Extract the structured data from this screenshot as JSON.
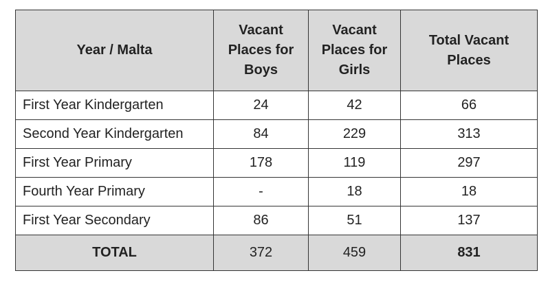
{
  "table": {
    "headers": {
      "year": "Year / Malta",
      "boys": [
        "Vacant",
        "Places for",
        "Boys"
      ],
      "girls": [
        "Vacant",
        "Places for",
        "Girls"
      ],
      "total": [
        "Total Vacant",
        "Places"
      ]
    },
    "rows": [
      {
        "label": "First Year Kindergarten",
        "boys": "24",
        "girls": "42",
        "total": "66"
      },
      {
        "label": "Second Year Kindergarten",
        "boys": "84",
        "girls": "229",
        "total": "313"
      },
      {
        "label": "First Year Primary",
        "boys": "178",
        "girls": "119",
        "total": "297"
      },
      {
        "label": "Fourth Year Primary",
        "boys": "-",
        "girls": "18",
        "total": "18"
      },
      {
        "label": "First Year Secondary",
        "boys": "86",
        "girls": "51",
        "total": "137"
      }
    ],
    "totals": {
      "label": "TOTAL",
      "boys": "372",
      "girls": "459",
      "total": "831"
    }
  }
}
